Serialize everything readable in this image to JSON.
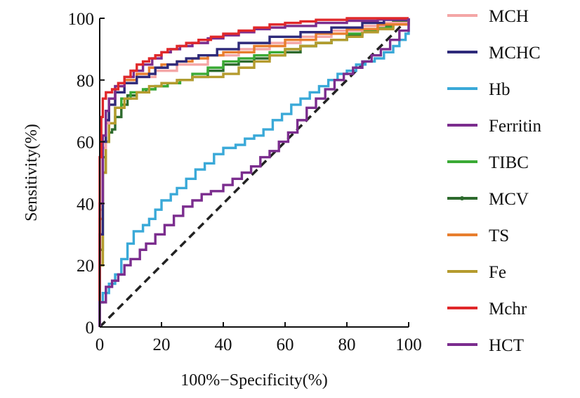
{
  "chart_data": {
    "type": "line",
    "title": "",
    "xlabel": "100%−Specificity(%)",
    "ylabel": "Sensitivity(%)",
    "xlim": [
      0,
      100
    ],
    "ylim": [
      0,
      100
    ],
    "x_ticks": [
      "0",
      "20",
      "40",
      "60",
      "80",
      "100"
    ],
    "y_ticks": [
      "0",
      "20",
      "40",
      "60",
      "80",
      "100"
    ],
    "grid": false,
    "legend_position": "right",
    "reference_line": {
      "style": "dashed",
      "color": "#222222",
      "points": [
        [
          0,
          0
        ],
        [
          100,
          100
        ]
      ]
    },
    "series": [
      {
        "name": "MCH",
        "color": "#f4a6a6",
        "points": [
          [
            0,
            0
          ],
          [
            0,
            38
          ],
          [
            1,
            58
          ],
          [
            2,
            66
          ],
          [
            3,
            72
          ],
          [
            5,
            76
          ],
          [
            8,
            79
          ],
          [
            12,
            81
          ],
          [
            18,
            83
          ],
          [
            25,
            85
          ],
          [
            35,
            88
          ],
          [
            45,
            90
          ],
          [
            55,
            92
          ],
          [
            65,
            94
          ],
          [
            75,
            96
          ],
          [
            85,
            97.5
          ],
          [
            92,
            98.5
          ],
          [
            100,
            100
          ]
        ]
      },
      {
        "name": "MCHC",
        "color": "#2e2a7a",
        "points": [
          [
            0,
            0
          ],
          [
            0,
            30
          ],
          [
            1,
            60
          ],
          [
            2,
            67
          ],
          [
            3,
            72
          ],
          [
            5,
            76
          ],
          [
            8,
            79
          ],
          [
            12,
            81
          ],
          [
            16,
            82
          ],
          [
            18,
            84
          ],
          [
            22,
            85
          ],
          [
            25,
            86
          ],
          [
            28,
            87
          ],
          [
            32,
            88
          ],
          [
            38,
            90
          ],
          [
            45,
            92
          ],
          [
            55,
            94
          ],
          [
            65,
            95.5
          ],
          [
            75,
            97
          ],
          [
            85,
            98.5
          ],
          [
            92,
            99.5
          ],
          [
            100,
            100
          ]
        ]
      },
      {
        "name": "Hb",
        "color": "#3aa9d8",
        "points": [
          [
            0,
            0
          ],
          [
            0,
            8
          ],
          [
            1,
            11
          ],
          [
            3,
            14
          ],
          [
            5,
            17
          ],
          [
            7,
            22
          ],
          [
            9,
            27
          ],
          [
            11,
            31
          ],
          [
            14,
            33
          ],
          [
            16,
            35
          ],
          [
            18,
            38
          ],
          [
            20,
            41
          ],
          [
            23,
            43
          ],
          [
            25,
            45
          ],
          [
            28,
            48
          ],
          [
            31,
            51
          ],
          [
            34,
            53
          ],
          [
            37,
            56
          ],
          [
            40,
            58
          ],
          [
            44,
            59
          ],
          [
            47,
            61
          ],
          [
            50,
            62
          ],
          [
            53,
            64
          ],
          [
            56,
            67
          ],
          [
            59,
            69
          ],
          [
            62,
            72
          ],
          [
            65,
            74
          ],
          [
            68,
            76
          ],
          [
            71,
            78
          ],
          [
            74,
            80
          ],
          [
            77,
            82
          ],
          [
            80,
            83
          ],
          [
            83,
            85
          ],
          [
            86,
            86
          ],
          [
            89,
            87
          ],
          [
            92,
            89
          ],
          [
            95,
            91
          ],
          [
            97,
            93
          ],
          [
            99,
            95
          ],
          [
            100,
            100
          ]
        ]
      },
      {
        "name": "Ferritin",
        "color": "#7b2d8e",
        "points": [
          [
            0,
            0
          ],
          [
            0,
            8
          ],
          [
            2,
            13
          ],
          [
            4,
            15
          ],
          [
            6,
            17
          ],
          [
            8,
            20
          ],
          [
            10,
            22
          ],
          [
            13,
            25
          ],
          [
            15,
            27
          ],
          [
            18,
            30
          ],
          [
            21,
            33
          ],
          [
            24,
            36
          ],
          [
            27,
            39
          ],
          [
            30,
            41
          ],
          [
            33,
            43
          ],
          [
            36,
            44
          ],
          [
            40,
            46
          ],
          [
            43,
            48
          ],
          [
            46,
            50
          ],
          [
            49,
            52
          ],
          [
            52,
            55
          ],
          [
            55,
            57
          ],
          [
            58,
            60
          ],
          [
            61,
            63
          ],
          [
            64,
            67
          ],
          [
            67,
            71
          ],
          [
            70,
            74
          ],
          [
            73,
            77
          ],
          [
            76,
            80
          ],
          [
            79,
            82
          ],
          [
            82,
            84
          ],
          [
            85,
            86
          ],
          [
            88,
            88
          ],
          [
            91,
            90
          ],
          [
            94,
            93
          ],
          [
            97,
            96
          ],
          [
            100,
            100
          ]
        ]
      },
      {
        "name": "TIBC",
        "color": "#3aaa35",
        "points": [
          [
            0,
            0
          ],
          [
            0,
            20
          ],
          [
            1,
            50
          ],
          [
            2,
            60
          ],
          [
            3,
            66
          ],
          [
            5,
            71
          ],
          [
            7,
            74
          ],
          [
            10,
            76
          ],
          [
            14,
            77
          ],
          [
            18,
            78
          ],
          [
            22,
            79
          ],
          [
            26,
            80
          ],
          [
            30,
            82
          ],
          [
            35,
            84
          ],
          [
            40,
            86
          ],
          [
            45,
            87
          ],
          [
            50,
            88
          ],
          [
            55,
            89
          ],
          [
            60,
            90
          ],
          [
            65,
            91
          ],
          [
            70,
            92
          ],
          [
            75,
            93
          ],
          [
            80,
            95
          ],
          [
            85,
            96
          ],
          [
            90,
            97
          ],
          [
            95,
            98.5
          ],
          [
            100,
            100
          ]
        ]
      },
      {
        "name": "MCV",
        "color": "#2d6a2d",
        "points": [
          [
            0,
            0
          ],
          [
            0,
            25
          ],
          [
            1,
            55
          ],
          [
            2,
            60
          ],
          [
            3,
            63
          ],
          [
            4,
            64
          ],
          [
            5,
            68
          ],
          [
            7,
            72
          ],
          [
            9,
            75
          ],
          [
            12,
            76
          ],
          [
            15,
            77
          ],
          [
            18,
            78
          ],
          [
            22,
            79
          ],
          [
            26,
            80
          ],
          [
            30,
            81
          ],
          [
            35,
            83
          ],
          [
            40,
            85
          ],
          [
            45,
            86
          ],
          [
            50,
            87
          ],
          [
            55,
            88
          ],
          [
            60,
            89
          ],
          [
            65,
            91
          ],
          [
            70,
            92
          ],
          [
            75,
            93
          ],
          [
            80,
            94.5
          ],
          [
            85,
            96
          ],
          [
            90,
            97.5
          ],
          [
            95,
            99
          ],
          [
            100,
            100
          ]
        ]
      },
      {
        "name": "TS",
        "color": "#e87e2e",
        "points": [
          [
            0,
            0
          ],
          [
            0,
            35
          ],
          [
            1,
            62
          ],
          [
            2,
            70
          ],
          [
            3,
            74
          ],
          [
            5,
            78
          ],
          [
            8,
            80
          ],
          [
            12,
            82
          ],
          [
            16,
            84
          ],
          [
            20,
            85
          ],
          [
            25,
            86
          ],
          [
            30,
            87
          ],
          [
            35,
            88
          ],
          [
            40,
            89
          ],
          [
            50,
            91
          ],
          [
            60,
            93
          ],
          [
            70,
            95
          ],
          [
            80,
            96.5
          ],
          [
            90,
            98
          ],
          [
            100,
            100
          ]
        ]
      },
      {
        "name": "Fe",
        "color": "#b59b2e",
        "points": [
          [
            0,
            0
          ],
          [
            0,
            20
          ],
          [
            1,
            50
          ],
          [
            2,
            60
          ],
          [
            3,
            66
          ],
          [
            5,
            71
          ],
          [
            8,
            74
          ],
          [
            12,
            76
          ],
          [
            16,
            78
          ],
          [
            20,
            79
          ],
          [
            25,
            80
          ],
          [
            30,
            81
          ],
          [
            35,
            81
          ],
          [
            40,
            82
          ],
          [
            45,
            84
          ],
          [
            50,
            86
          ],
          [
            55,
            88
          ],
          [
            60,
            90
          ],
          [
            65,
            91
          ],
          [
            70,
            92
          ],
          [
            75,
            93
          ],
          [
            80,
            94
          ],
          [
            85,
            95.5
          ],
          [
            90,
            96.5
          ],
          [
            95,
            98
          ],
          [
            100,
            100
          ]
        ]
      },
      {
        "name": "Mchr",
        "color": "#e0282a",
        "points": [
          [
            0,
            0
          ],
          [
            0,
            55
          ],
          [
            0.5,
            68
          ],
          [
            1,
            74
          ],
          [
            2,
            76
          ],
          [
            4,
            77
          ],
          [
            6,
            79
          ],
          [
            8,
            81
          ],
          [
            10,
            83
          ],
          [
            12,
            85
          ],
          [
            14,
            86
          ],
          [
            16,
            87
          ],
          [
            18,
            88
          ],
          [
            20,
            89
          ],
          [
            22,
            90
          ],
          [
            25,
            91
          ],
          [
            28,
            92
          ],
          [
            32,
            93
          ],
          [
            36,
            94
          ],
          [
            40,
            95
          ],
          [
            45,
            96
          ],
          [
            50,
            97
          ],
          [
            55,
            98
          ],
          [
            60,
            98.5
          ],
          [
            65,
            99
          ],
          [
            70,
            99.5
          ],
          [
            80,
            100
          ],
          [
            100,
            100
          ]
        ]
      },
      {
        "name": "HCT",
        "color": "#7b2d8e",
        "points": [
          [
            0,
            0
          ],
          [
            0,
            40
          ],
          [
            1,
            62
          ],
          [
            2,
            70
          ],
          [
            3,
            74
          ],
          [
            5,
            78
          ],
          [
            8,
            81
          ],
          [
            11,
            83
          ],
          [
            14,
            85
          ],
          [
            17,
            87
          ],
          [
            20,
            89
          ],
          [
            23,
            90
          ],
          [
            26,
            91
          ],
          [
            30,
            92
          ],
          [
            35,
            93.5
          ],
          [
            40,
            94.5
          ],
          [
            45,
            95.5
          ],
          [
            50,
            96.5
          ],
          [
            55,
            97
          ],
          [
            60,
            97.5
          ],
          [
            70,
            98.5
          ],
          [
            80,
            99.2
          ],
          [
            90,
            99.6
          ],
          [
            100,
            100
          ]
        ]
      }
    ]
  }
}
